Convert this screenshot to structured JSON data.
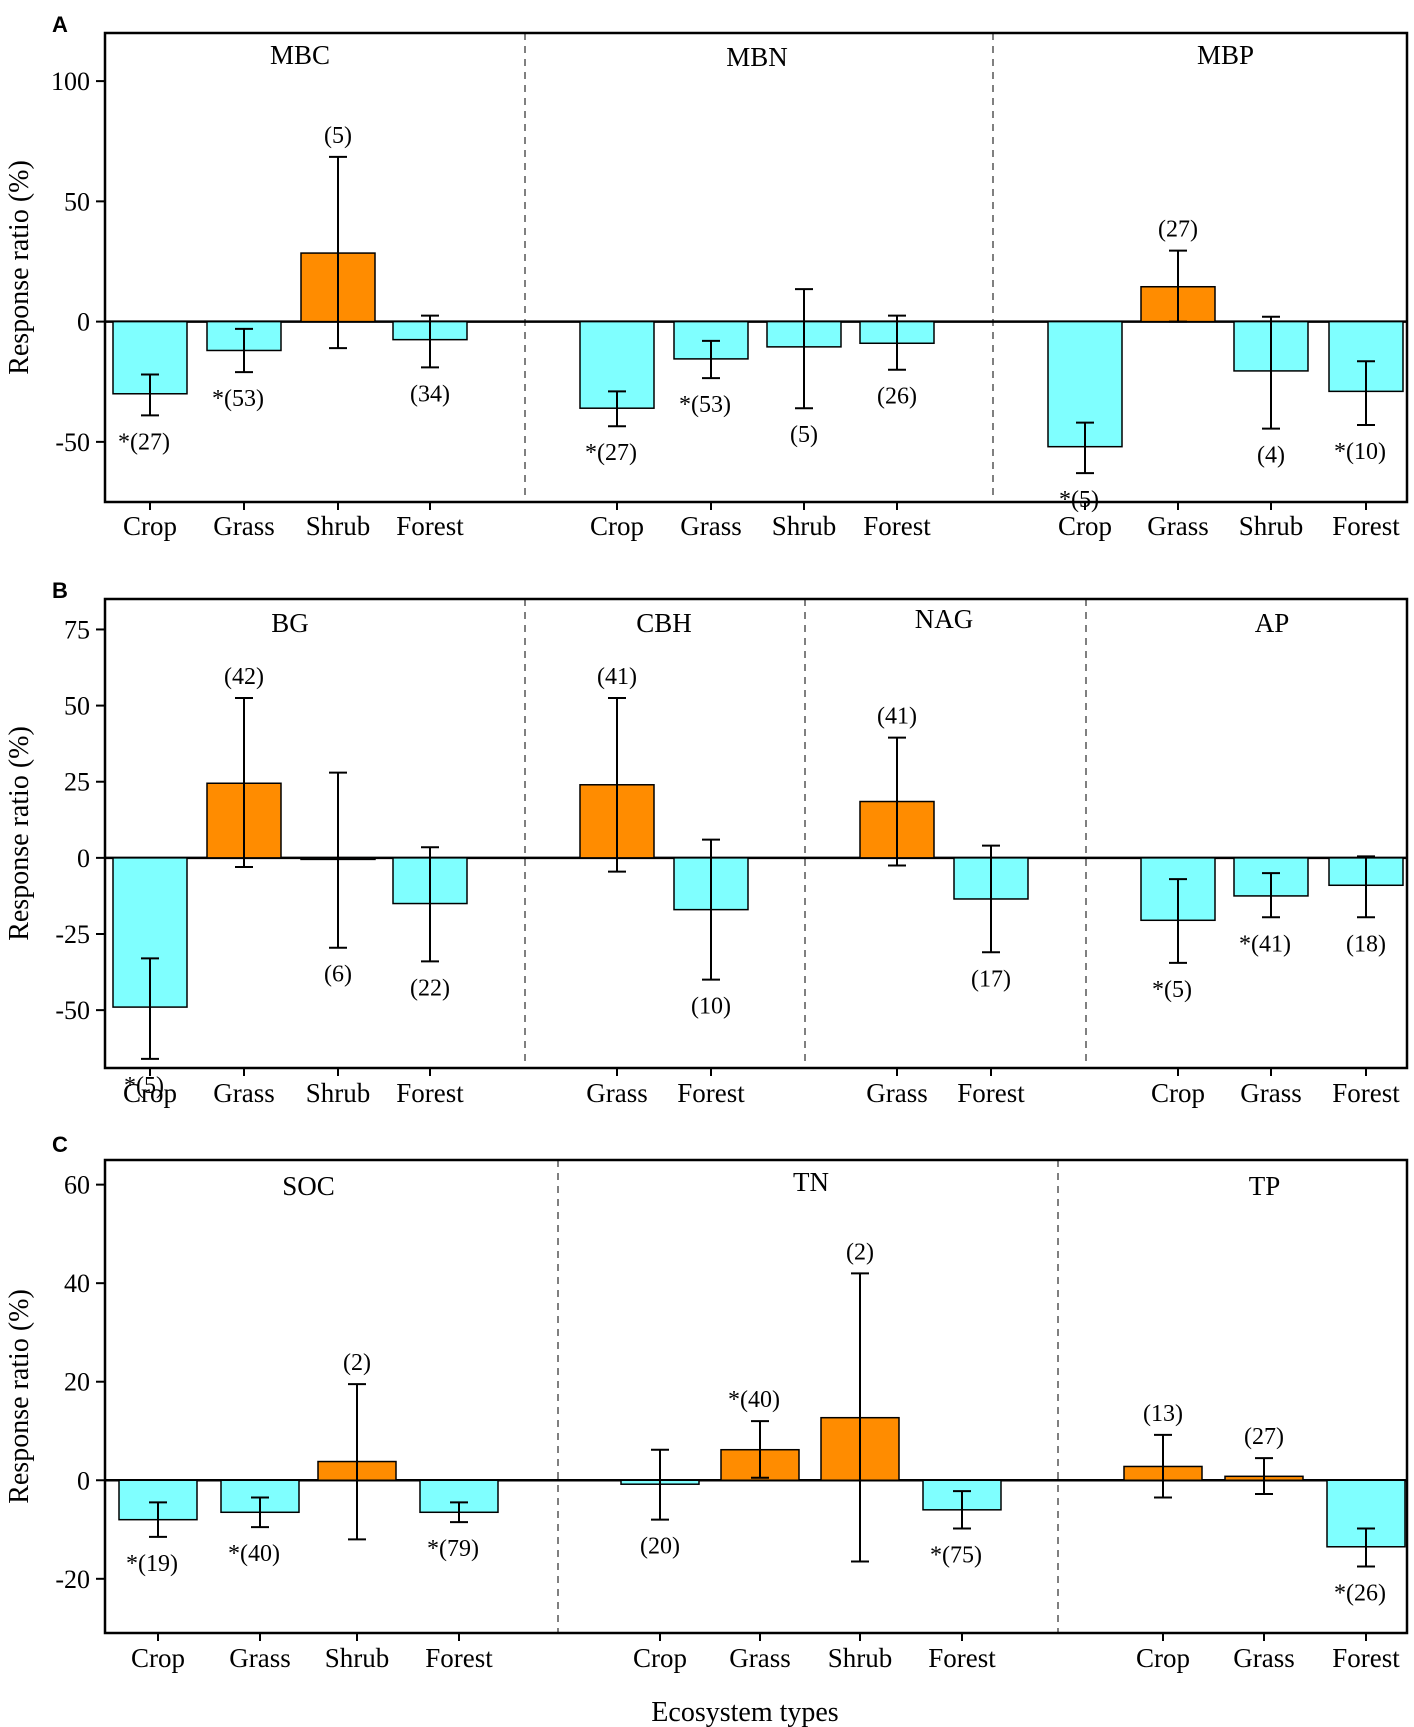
{
  "colors": {
    "positive": "#ff8c00",
    "negative": "#7fffff",
    "stroke": "#000000",
    "divider": "#808080"
  },
  "x_axis_title": "Ecosystem types",
  "chart_data": [
    {
      "type": "bar",
      "panel": "A",
      "ylabel": "Response ratio (%)",
      "ylim": [
        -75,
        120
      ],
      "yticks": [
        100,
        50,
        0,
        -50
      ],
      "groups": [
        {
          "title": "MBC",
          "categories": [
            "Crop",
            "Grass",
            "Shrub",
            "Forest"
          ],
          "values": [
            -30,
            -12,
            28.5,
            -7.5
          ],
          "ci": [
            [
              -39,
              -22
            ],
            [
              -21,
              -3
            ],
            [
              -11,
              68.5
            ],
            [
              -19,
              2.5
            ]
          ],
          "n_labels": [
            "*(27)",
            "*(53)",
            "(5)",
            "(34)"
          ]
        },
        {
          "title": "MBN",
          "categories": [
            "Crop",
            "Grass",
            "Shrub",
            "Forest"
          ],
          "values": [
            -36,
            -15.5,
            -10.5,
            -9
          ],
          "ci": [
            [
              -43.5,
              -29
            ],
            [
              -23.5,
              -8
            ],
            [
              -36,
              13.5
            ],
            [
              -20,
              2.5
            ]
          ],
          "n_labels": [
            "*(27)",
            "*(53)",
            "(5)",
            "(26)"
          ]
        },
        {
          "title": "MBP",
          "categories": [
            "Crop",
            "Grass",
            "Shrub",
            "Forest"
          ],
          "values": [
            -52,
            14.5,
            -20.5,
            -29
          ],
          "ci": [
            [
              -63,
              -42
            ],
            [
              0,
              29.5
            ],
            [
              -44.5,
              2
            ],
            [
              -43,
              -16.5
            ]
          ],
          "n_labels": [
            "*(5)",
            "(27)",
            "(4)",
            "*(10)"
          ]
        }
      ]
    },
    {
      "type": "bar",
      "panel": "B",
      "ylabel": "Response ratio (%)",
      "ylim": [
        -69,
        85
      ],
      "yticks": [
        75,
        50,
        25,
        0,
        -25,
        -50
      ],
      "groups": [
        {
          "title": "BG",
          "categories": [
            "Crop",
            "Grass",
            "Shrub",
            "Forest"
          ],
          "values": [
            -49,
            24.5,
            -0.5,
            -15
          ],
          "ci": [
            [
              -66,
              -33
            ],
            [
              -3,
              52.5
            ],
            [
              -29.5,
              28
            ],
            [
              -34,
              3.5
            ]
          ],
          "n_labels": [
            "*(5)",
            "(42)",
            "(6)",
            "(22)"
          ]
        },
        {
          "title": "CBH",
          "categories": [
            "Grass",
            "Forest"
          ],
          "values": [
            24,
            -17
          ],
          "ci": [
            [
              -4.5,
              52.5
            ],
            [
              -40,
              6
            ]
          ],
          "n_labels": [
            "(41)",
            "(10)"
          ]
        },
        {
          "title": "NAG",
          "categories": [
            "Grass",
            "Forest"
          ],
          "values": [
            18.5,
            -13.5
          ],
          "ci": [
            [
              -2.5,
              39.5
            ],
            [
              -31,
              4
            ]
          ],
          "n_labels": [
            "(41)",
            "(17)"
          ]
        },
        {
          "title": "AP",
          "categories": [
            "Crop",
            "Grass",
            "Forest"
          ],
          "values": [
            -20.5,
            -12.5,
            -9
          ],
          "ci": [
            [
              -34.5,
              -7
            ],
            [
              -19.5,
              -5
            ],
            [
              -19.5,
              0.5
            ]
          ],
          "n_labels": [
            "*(5)",
            "*(41)",
            "(18)"
          ]
        }
      ]
    },
    {
      "type": "bar",
      "panel": "C",
      "ylabel": "Response ratio (%)",
      "ylim": [
        -31,
        65
      ],
      "yticks": [
        60,
        40,
        20,
        0,
        -20
      ],
      "groups": [
        {
          "title": "SOC",
          "categories": [
            "Crop",
            "Grass",
            "Shrub",
            "Forest"
          ],
          "values": [
            -8,
            -6.5,
            3.8,
            -6.5
          ],
          "ci": [
            [
              -11.5,
              -4.5
            ],
            [
              -9.5,
              -3.5
            ],
            [
              -12,
              19.5
            ],
            [
              -8.5,
              -4.5
            ]
          ],
          "n_labels": [
            "*(19)",
            "*(40)",
            "(2)",
            "*(79)"
          ]
        },
        {
          "title": "TN",
          "categories": [
            "Crop",
            "Grass",
            "Shrub",
            "Forest"
          ],
          "values": [
            -0.8,
            6.2,
            12.7,
            -6
          ],
          "ci": [
            [
              -8,
              6.2
            ],
            [
              0.5,
              12
            ],
            [
              -16.5,
              42
            ],
            [
              -9.8,
              -2.2
            ]
          ],
          "n_labels": [
            "(20)",
            "*(40)",
            "(2)",
            "*(75)"
          ]
        },
        {
          "title": "TP",
          "categories": [
            "Crop",
            "Grass",
            "Forest"
          ],
          "values": [
            2.8,
            0.8,
            -13.5
          ],
          "ci": [
            [
              -3.5,
              9.2
            ],
            [
              -2.8,
              4.5
            ],
            [
              -17.5,
              -9.8
            ]
          ],
          "n_labels": [
            "(13)",
            "(27)",
            "*(26)"
          ]
        }
      ]
    }
  ]
}
